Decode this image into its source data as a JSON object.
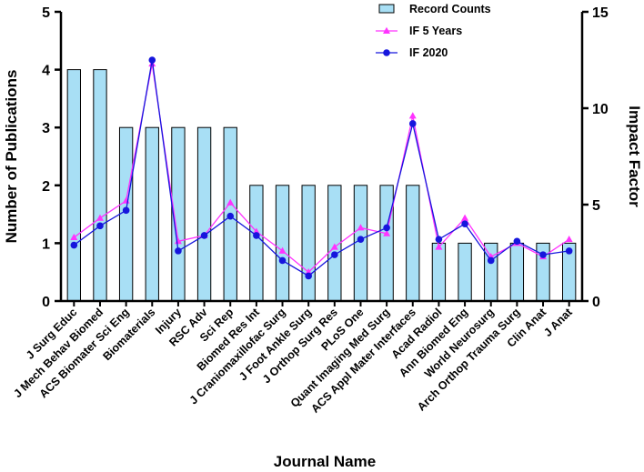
{
  "chart_data": {
    "type": "bar",
    "categories": [
      "J Surg Educ",
      "J Mech Behav Biomed",
      "ACS Biomater Sci Eng",
      "Biomaterials",
      "Injury",
      "RSC Adv",
      "Sci Rep",
      "Biomed Res Int",
      "J Craniomaxillofac Surg",
      "J Foot Ankle Surg",
      "J Orthop Surg Res",
      "PLoS One",
      "Quant Imaging Med Surg",
      "ACS Appl Mater Interfaces",
      "Acad Radiol",
      "Ann Biomed Eng",
      "World Neurosurg",
      "Arch Orthop Trauma Surg",
      "Clin Anat",
      "J Anat"
    ],
    "series": [
      {
        "name": "Record Counts",
        "axis": "left",
        "kind": "bar",
        "color": "#a8dff5",
        "values": [
          4,
          4,
          3,
          3,
          3,
          3,
          3,
          2,
          2,
          2,
          2,
          2,
          2,
          2,
          1,
          1,
          1,
          1,
          1,
          1
        ]
      },
      {
        "name": "IF 5 Years",
        "axis": "right",
        "kind": "line",
        "marker": "triangle",
        "color": "#ff33ff",
        "values": [
          3.3,
          4.3,
          5.2,
          12.3,
          3.1,
          3.4,
          5.1,
          3.6,
          2.6,
          1.5,
          2.8,
          3.8,
          3.5,
          9.6,
          2.8,
          4.3,
          2.3,
          3.0,
          2.3,
          3.2
        ]
      },
      {
        "name": "IF 2020",
        "axis": "right",
        "kind": "line",
        "marker": "circle",
        "color": "#1616dd",
        "values": [
          2.9,
          3.9,
          4.7,
          12.5,
          2.6,
          3.4,
          4.4,
          3.4,
          2.1,
          1.3,
          2.4,
          3.2,
          3.8,
          9.2,
          3.2,
          4.0,
          2.1,
          3.1,
          2.4,
          2.6
        ]
      }
    ],
    "title": "",
    "xlabel": "Journal Name",
    "ylabel": "Number of Publications",
    "y2label": "Impact Factor",
    "ylim": [
      0,
      5
    ],
    "yticks": [
      0,
      1,
      2,
      3,
      4,
      5
    ],
    "y2lim": [
      0,
      15
    ],
    "y2ticks": [
      0,
      5,
      10,
      15
    ],
    "legend_position": "top-right"
  }
}
